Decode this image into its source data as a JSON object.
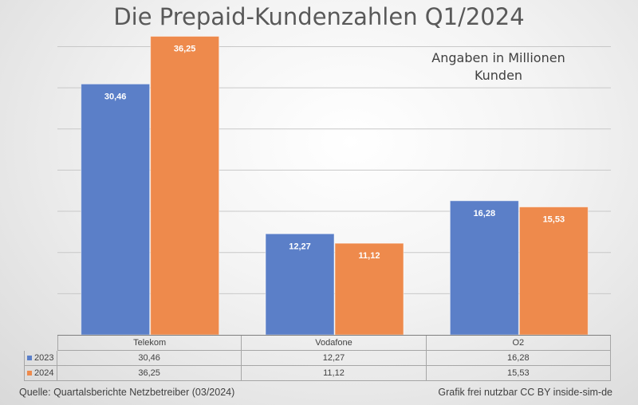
{
  "chart_data": {
    "type": "bar",
    "title": "Die Prepaid-Kundenzahlen Q1/2024",
    "annotation": "Angaben in Millionen Kunden",
    "categories": [
      "Telekom",
      "Vodafone",
      "O2"
    ],
    "series": [
      {
        "name": "2023",
        "values": [
          30.46,
          12.27,
          16.28
        ],
        "labels": [
          "30,46",
          "12,27",
          "16,28"
        ],
        "color": "#5b7fc8"
      },
      {
        "name": "2024",
        "values": [
          36.25,
          11.12,
          15.53
        ],
        "labels": [
          "36,25",
          "11,12",
          "15,53"
        ],
        "color": "#ee8a4c"
      }
    ],
    "ylim": [
      0,
      40
    ],
    "grid_step": 5,
    "grid": true,
    "y_tick_labels_shown": false,
    "legend": "data-table"
  },
  "footer": {
    "source": "Quelle: Quartalsberichte Netzbetreiber (03/2024)",
    "license": "Grafik frei nutzbar CC BY inside-sim-de"
  }
}
